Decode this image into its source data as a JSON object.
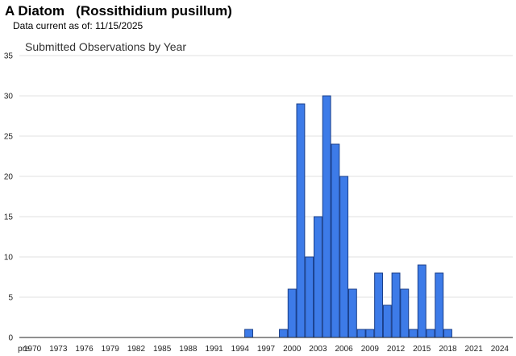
{
  "header": {
    "title": "A Diatom   (Rossithidium pusillum)",
    "data_current": "Data current as of: 11/15/2025"
  },
  "chart_data": {
    "type": "bar",
    "title": "Submitted Observations by Year",
    "xlabel": "",
    "ylabel": "",
    "ylim": [
      0,
      35
    ],
    "yticks": [
      "0",
      "5",
      "10",
      "15",
      "20",
      "25",
      "30",
      "35"
    ],
    "categories": [
      "pre",
      "1970",
      "1971",
      "1972",
      "1973",
      "1974",
      "1975",
      "1976",
      "1977",
      "1978",
      "1979",
      "1980",
      "1981",
      "1982",
      "1983",
      "1984",
      "1985",
      "1986",
      "1987",
      "1988",
      "1989",
      "1990",
      "1991",
      "1992",
      "1993",
      "1994",
      "1995",
      "1996",
      "1997",
      "1998",
      "1999",
      "2000",
      "2001",
      "2002",
      "2003",
      "2004",
      "2005",
      "2006",
      "2007",
      "2008",
      "2009",
      "2010",
      "2011",
      "2012",
      "2013",
      "2014",
      "2015",
      "2016",
      "2017",
      "2018",
      "2019",
      "2020",
      "2021",
      "2022",
      "2023",
      "2024",
      "2025"
    ],
    "xtick_labels": [
      "pre",
      "1970",
      "1973",
      "1976",
      "1979",
      "1982",
      "1985",
      "1988",
      "1991",
      "1994",
      "1997",
      "2000",
      "2003",
      "2006",
      "2009",
      "2012",
      "2015",
      "2018",
      "2021",
      "2024"
    ],
    "values": [
      0,
      0,
      0,
      0,
      0,
      0,
      0,
      0,
      0,
      0,
      0,
      0,
      0,
      0,
      0,
      0,
      0,
      0,
      0,
      0,
      0,
      0,
      0,
      0,
      0,
      0,
      1,
      0,
      0,
      0,
      1,
      6,
      29,
      10,
      15,
      30,
      24,
      20,
      6,
      1,
      1,
      8,
      4,
      8,
      6,
      1,
      9,
      1,
      8,
      1,
      0,
      0,
      0,
      0,
      0,
      0,
      0
    ],
    "grid": true,
    "colors": {
      "bar_fill": "#3d7be8",
      "bar_stroke": "#1a3f8a",
      "grid": "#e2e2e2",
      "axis": "#222222"
    }
  }
}
